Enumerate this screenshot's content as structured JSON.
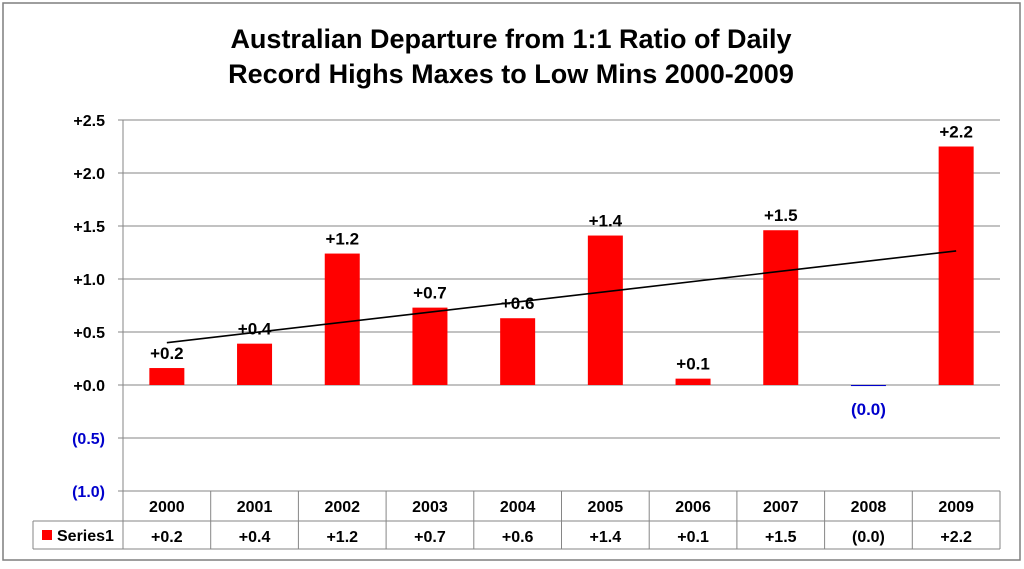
{
  "chart_data": {
    "type": "bar",
    "title_lines": [
      "Australian Departure from 1:1 Ratio of Daily",
      "Record Highs Maxes to Low Mins 2000-2009"
    ],
    "categories": [
      "2000",
      "2001",
      "2002",
      "2003",
      "2004",
      "2005",
      "2006",
      "2007",
      "2008",
      "2009"
    ],
    "series": [
      {
        "name": "Series1",
        "values": [
          0.16,
          0.39,
          1.24,
          0.73,
          0.63,
          1.41,
          0.06,
          1.46,
          -0.01,
          2.25
        ],
        "data_labels": [
          "+0.2",
          "+0.4",
          "+1.2",
          "+0.7",
          "+0.6",
          "+1.4",
          "+0.1",
          "+1.5",
          "(0.0)",
          "+2.2"
        ],
        "color": "#ff0000",
        "negative_color": "#0000cc"
      }
    ],
    "trendline": {
      "type": "linear",
      "color": "#000000"
    },
    "ylim": [
      -1.0,
      2.5
    ],
    "yticks": [
      2.5,
      2.0,
      1.5,
      1.0,
      0.5,
      0.0,
      -0.5,
      -1.0
    ],
    "ytick_labels": [
      "+2.5",
      "+2.0",
      "+1.5",
      "+1.0",
      "+0.5",
      "+0.0",
      "(0.5)",
      "(1.0)"
    ],
    "negative_label_color": "#0000cc",
    "grid": true,
    "data_table": true,
    "legend_label": "Series1",
    "xlabel": "",
    "ylabel": ""
  }
}
